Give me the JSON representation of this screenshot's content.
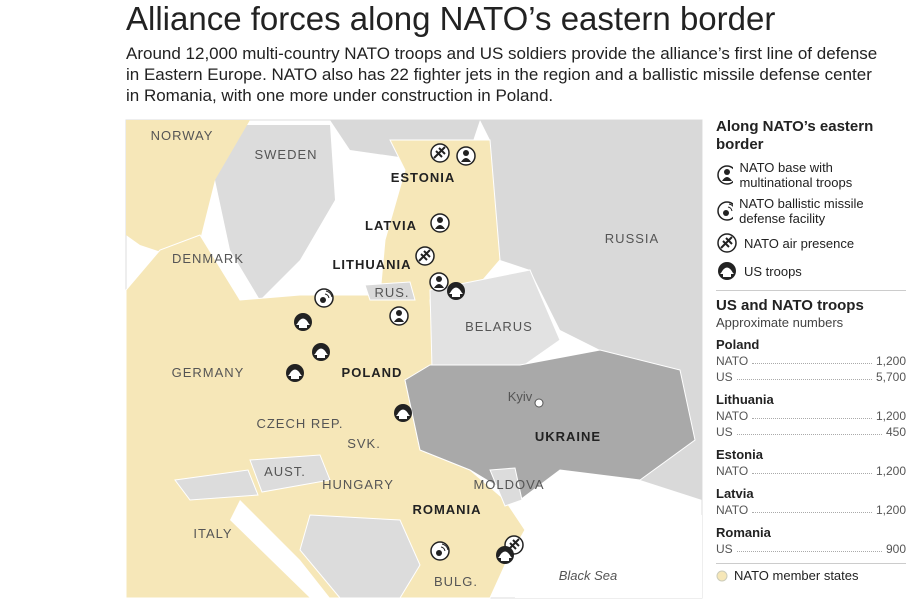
{
  "header": {
    "title": "Alliance forces along NATO’s eastern border",
    "subtitle": "Around 12,000 multi-country NATO troops and US soldiers provide the alliance’s first line of defense in Eastern Europe. NATO also has 22 fighter jets in the region and a ballistic missile defense center in Romania, with one more under construction in Poland."
  },
  "map": {
    "labels": [
      "NORWAY",
      "SWEDEN",
      "ESTONIA",
      "LATVIA",
      "LITHUANIA",
      "DENMARK",
      "RUS.",
      "BELARUS",
      "RUSSIA",
      "GERMANY",
      "POLAND",
      "CZECH REP.",
      "SVK.",
      "AUST.",
      "HUNGARY",
      "UKRAINE",
      "Kyiv",
      "MOLDOVA",
      "ROMANIA",
      "ITALY",
      "BULG.",
      "Black Sea"
    ]
  },
  "legend": {
    "title": "Along NATO’s eastern border",
    "items": [
      "NATO base with multinational troops",
      "NATO ballistic missile defense facility",
      "NATO air presence",
      "US troops"
    ],
    "member_states": "NATO member states"
  },
  "troops": {
    "title": "US and NATO troops",
    "subtitle": "Approximate numbers",
    "countries": [
      {
        "name": "Poland",
        "rows": [
          [
            "NATO",
            "1,200"
          ],
          [
            "US",
            "5,700"
          ]
        ]
      },
      {
        "name": "Lithuania",
        "rows": [
          [
            "NATO",
            "1,200"
          ],
          [
            "US",
            "450"
          ]
        ]
      },
      {
        "name": "Estonia",
        "rows": [
          [
            "NATO",
            "1,200"
          ]
        ]
      },
      {
        "name": "Latvia",
        "rows": [
          [
            "NATO",
            "1,200"
          ]
        ]
      },
      {
        "name": "Romania",
        "rows": [
          [
            "US",
            "900"
          ]
        ]
      }
    ]
  }
}
